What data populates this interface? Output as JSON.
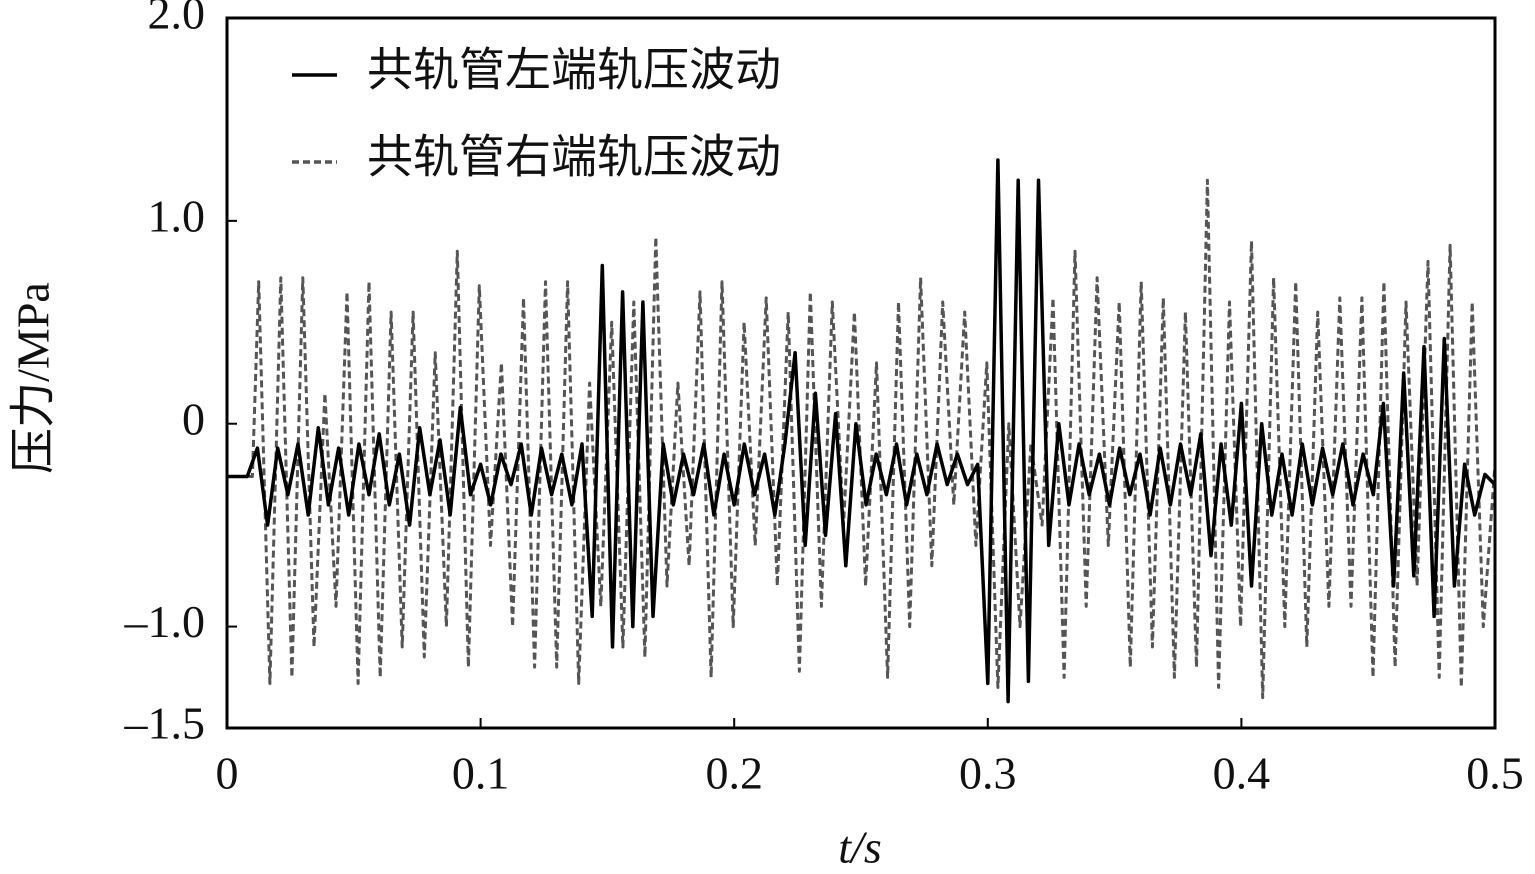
{
  "chart_data": {
    "type": "line",
    "xlabel": "t/s",
    "ylabel": "压力/MPa",
    "xlim": [
      0,
      0.5
    ],
    "xticks": [
      0,
      0.1,
      0.2,
      0.3,
      0.4,
      0.5
    ],
    "ylim": [
      -1.5,
      2.0
    ],
    "yticks": [
      {
        "value": -1.5,
        "label": "–1.5"
      },
      {
        "value": -1.0,
        "label": "–1.0"
      },
      0,
      {
        "value": 1.0,
        "label": "1.0"
      },
      {
        "value": 2.0,
        "label": "2.0"
      }
    ],
    "legend": "upper left",
    "series": [
      {
        "name": "共轨管左端轨压波动",
        "color": "#000000",
        "dashed": false,
        "x": [
          0,
          0.004,
          0.008,
          0.012,
          0.016,
          0.02,
          0.024,
          0.028,
          0.032,
          0.036,
          0.04,
          0.044,
          0.048,
          0.052,
          0.056,
          0.06,
          0.064,
          0.068,
          0.072,
          0.076,
          0.08,
          0.084,
          0.088,
          0.092,
          0.096,
          0.1,
          0.104,
          0.108,
          0.112,
          0.116,
          0.12,
          0.124,
          0.128,
          0.132,
          0.136,
          0.14,
          0.144,
          0.148,
          0.152,
          0.156,
          0.16,
          0.164,
          0.168,
          0.172,
          0.176,
          0.18,
          0.184,
          0.188,
          0.192,
          0.196,
          0.2,
          0.204,
          0.208,
          0.212,
          0.216,
          0.22,
          0.224,
          0.228,
          0.232,
          0.236,
          0.24,
          0.244,
          0.248,
          0.252,
          0.256,
          0.26,
          0.264,
          0.268,
          0.272,
          0.276,
          0.28,
          0.284,
          0.288,
          0.292,
          0.296,
          0.3,
          0.304,
          0.308,
          0.312,
          0.316,
          0.32,
          0.324,
          0.328,
          0.332,
          0.336,
          0.34,
          0.344,
          0.348,
          0.352,
          0.356,
          0.36,
          0.364,
          0.368,
          0.372,
          0.376,
          0.38,
          0.384,
          0.388,
          0.392,
          0.396,
          0.4,
          0.404,
          0.408,
          0.412,
          0.416,
          0.42,
          0.424,
          0.428,
          0.432,
          0.436,
          0.44,
          0.444,
          0.448,
          0.452,
          0.456,
          0.46,
          0.464,
          0.468,
          0.472,
          0.476,
          0.48,
          0.484,
          0.488,
          0.492,
          0.496,
          0.5
        ],
        "values": [
          -0.26,
          -0.26,
          -0.26,
          -0.12,
          -0.5,
          -0.12,
          -0.35,
          -0.1,
          -0.45,
          -0.02,
          -0.4,
          -0.12,
          -0.45,
          -0.1,
          -0.35,
          -0.05,
          -0.4,
          -0.15,
          -0.5,
          -0.02,
          -0.35,
          -0.08,
          -0.45,
          0.08,
          -0.35,
          -0.2,
          -0.4,
          -0.15,
          -0.3,
          -0.1,
          -0.45,
          -0.12,
          -0.35,
          -0.15,
          -0.4,
          -0.1,
          -0.95,
          0.78,
          -1.1,
          0.65,
          -1.0,
          0.6,
          -0.95,
          -0.1,
          -0.4,
          -0.15,
          -0.35,
          -0.1,
          -0.45,
          -0.15,
          -0.4,
          -0.1,
          -0.35,
          -0.15,
          -0.45,
          -0.1,
          0.35,
          -0.6,
          0.15,
          -0.55,
          0.05,
          -0.7,
          0.0,
          -0.4,
          -0.15,
          -0.35,
          -0.1,
          -0.4,
          -0.15,
          -0.35,
          -0.1,
          -0.3,
          -0.15,
          -0.3,
          -0.2,
          -1.28,
          1.3,
          -1.37,
          1.2,
          -1.27,
          1.2,
          -0.6,
          0.0,
          -0.4,
          -0.1,
          -0.35,
          -0.15,
          -0.4,
          -0.12,
          -0.35,
          -0.15,
          -0.45,
          -0.12,
          -0.4,
          -0.1,
          -0.35,
          -0.05,
          -0.65,
          -0.1,
          -0.5,
          0.1,
          -0.8,
          0.0,
          -0.45,
          -0.15,
          -0.45,
          -0.1,
          -0.4,
          -0.12,
          -0.35,
          -0.1,
          -0.4,
          -0.15,
          -0.35,
          0.1,
          -0.8,
          0.25,
          -0.75,
          0.38,
          -0.95,
          0.42,
          -0.8,
          -0.2,
          -0.45,
          -0.25,
          -0.3
        ]
      },
      {
        "name": "共轨管右端轨压波动",
        "color": "#555555",
        "dashed": true,
        "x": [
          0,
          0.01,
          0.0125,
          0.0169,
          0.0212,
          0.0256,
          0.0299,
          0.0343,
          0.0386,
          0.043,
          0.0473,
          0.0517,
          0.056,
          0.0604,
          0.0647,
          0.0691,
          0.0734,
          0.0778,
          0.0821,
          0.0865,
          0.0908,
          0.0952,
          0.0995,
          0.1039,
          0.1082,
          0.1126,
          0.1169,
          0.1213,
          0.1256,
          0.13,
          0.1343,
          0.1387,
          0.143,
          0.1474,
          0.1517,
          0.1561,
          0.1604,
          0.1648,
          0.1691,
          0.1735,
          0.1778,
          0.1822,
          0.1865,
          0.1909,
          0.1952,
          0.1996,
          0.2039,
          0.2083,
          0.2126,
          0.217,
          0.2213,
          0.2257,
          0.23,
          0.2344,
          0.2387,
          0.2431,
          0.2474,
          0.2518,
          0.2561,
          0.2605,
          0.2648,
          0.2692,
          0.2735,
          0.2779,
          0.2822,
          0.2866,
          0.2909,
          0.2953,
          0.2996,
          0.304,
          0.3083,
          0.3127,
          0.317,
          0.3214,
          0.3257,
          0.3301,
          0.3344,
          0.3388,
          0.3431,
          0.3475,
          0.3518,
          0.3562,
          0.3605,
          0.3649,
          0.3692,
          0.3736,
          0.3779,
          0.3823,
          0.3866,
          0.391,
          0.3953,
          0.3997,
          0.404,
          0.4084,
          0.4127,
          0.4171,
          0.4214,
          0.4258,
          0.4301,
          0.4345,
          0.4388,
          0.4432,
          0.4475,
          0.4519,
          0.4562,
          0.4606,
          0.4649,
          0.4693,
          0.4736,
          0.478,
          0.4823,
          0.4867,
          0.491,
          0.4954,
          0.5
        ],
        "values": [
          -0.26,
          -0.26,
          0.7,
          -1.28,
          0.72,
          -1.25,
          0.72,
          -1.1,
          0.15,
          -0.9,
          0.65,
          -1.28,
          0.7,
          -1.25,
          0.55,
          -1.1,
          0.55,
          -1.15,
          0.35,
          -1.0,
          0.85,
          -1.2,
          0.68,
          -0.6,
          0.3,
          -1.0,
          0.62,
          -1.2,
          0.7,
          -1.2,
          0.7,
          -1.28,
          0.2,
          -0.9,
          0.5,
          -1.1,
          0.6,
          -1.15,
          0.92,
          -0.8,
          0.2,
          -0.7,
          0.65,
          -1.25,
          0.7,
          -1.0,
          0.5,
          -0.6,
          0.62,
          -0.8,
          0.55,
          -1.22,
          0.65,
          -0.9,
          0.6,
          -0.5,
          0.55,
          -0.8,
          0.3,
          -1.25,
          0.6,
          -1.0,
          0.72,
          -0.7,
          0.6,
          -0.4,
          0.55,
          -0.6,
          0.3,
          -1.3,
          0.0,
          -1.0,
          -0.1,
          -0.5,
          0.62,
          -1.25,
          0.85,
          -0.9,
          0.72,
          -0.6,
          0.6,
          -1.2,
          0.7,
          -1.1,
          0.62,
          -1.25,
          0.55,
          -1.2,
          1.2,
          -1.3,
          0.6,
          -1.0,
          0.9,
          -1.35,
          0.72,
          -1.0,
          0.7,
          -1.1,
          0.55,
          -0.9,
          0.62,
          -0.9,
          0.62,
          -1.25,
          0.7,
          -1.2,
          0.6,
          -0.8,
          0.8,
          -1.25,
          0.88,
          -1.3,
          0.6,
          -1.0,
          -0.2
        ]
      }
    ]
  }
}
